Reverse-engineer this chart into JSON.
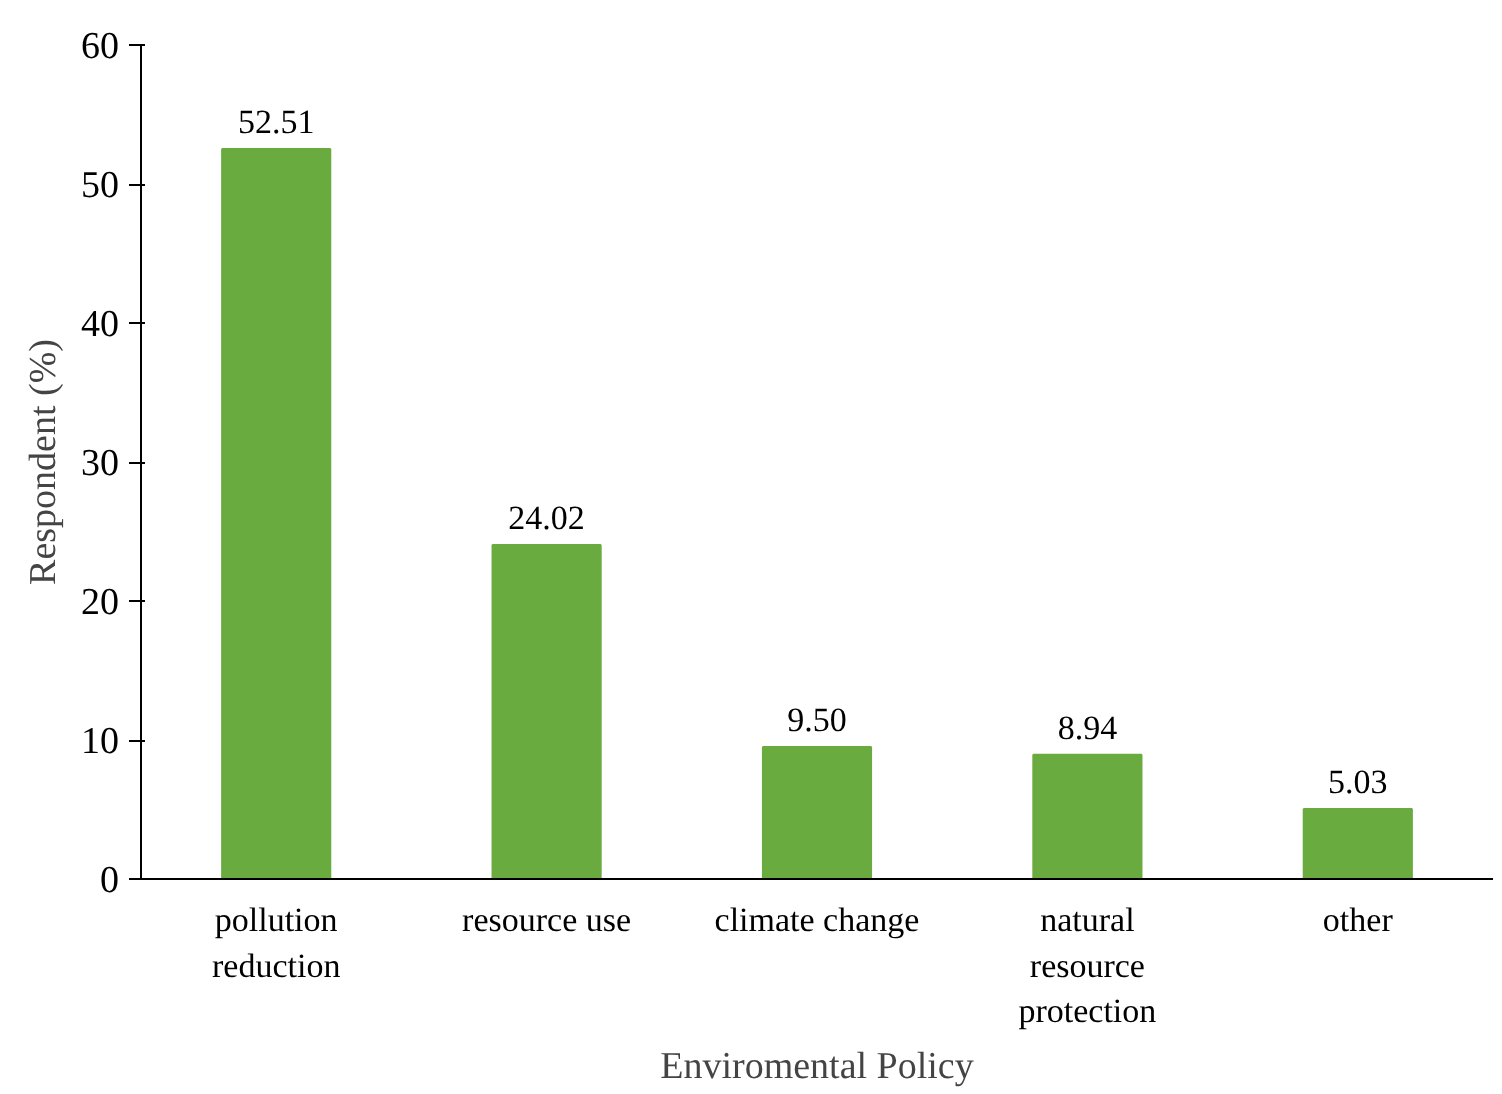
{
  "chart_data": {
    "type": "bar",
    "xlabel": "Enviromental Policy",
    "ylabel": "Respondent (%)",
    "categories": [
      "pollution reduction",
      "resource use",
      "climate change",
      "natural resource protection",
      "other"
    ],
    "values": [
      52.51,
      24.02,
      9.5,
      8.94,
      5.03
    ],
    "value_labels": [
      "52.51",
      "24.02",
      "9.50",
      "8.94",
      "5.03"
    ],
    "color": "#6aab3f",
    "ylim": [
      0,
      60
    ],
    "yticks": [
      0,
      10,
      20,
      30,
      40,
      50,
      60
    ],
    "grid": false
  }
}
